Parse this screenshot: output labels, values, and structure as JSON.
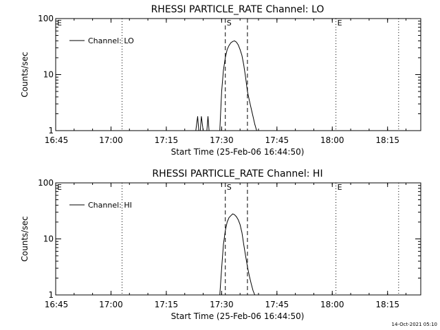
{
  "footer": {
    "timestamp": "14-Oct-2021 05:10"
  },
  "chart_data": [
    {
      "type": "line",
      "title": "RHESSI PARTICLE_RATE Channel: LO",
      "xlabel": "Start Time (25-Feb-06 16:44:50)",
      "ylabel": "Counts/sec",
      "yscale": "log",
      "ylim": [
        1,
        100
      ],
      "xlim": [
        "16:45",
        "18:24"
      ],
      "xticks": [
        "16:45",
        "17:00",
        "17:15",
        "17:30",
        "17:45",
        "18:00",
        "18:15"
      ],
      "yticks": [
        "1",
        "10",
        "100"
      ],
      "legend": {
        "label": "Channel: LO",
        "position": "top-left"
      },
      "markers": [
        {
          "label": "E",
          "style": "dotted",
          "x": "16:45"
        },
        {
          "label": "",
          "style": "dotted",
          "x": "17:03"
        },
        {
          "label": "S",
          "style": "dashed",
          "x": "17:31"
        },
        {
          "label": "",
          "style": "dashed",
          "x": "17:37"
        },
        {
          "label": "E",
          "style": "dotted",
          "x": "18:01"
        },
        {
          "label": "",
          "style": "dotted",
          "x": "18:18"
        }
      ],
      "series": [
        {
          "name": "Channel: LO",
          "x": [
            "17:23",
            "17:23.5",
            "17:23.8",
            "17:24.2",
            "17:24.5",
            "17:25",
            "17:25.5",
            "17:26",
            "17:26.3",
            "17:26.6",
            "17:27",
            "17:29.5",
            "17:30",
            "17:30.5",
            "17:31",
            "17:31.5",
            "17:32",
            "17:32.5",
            "17:33",
            "17:33.5",
            "17:34",
            "17:34.5",
            "17:35",
            "17:35.5",
            "17:36",
            "17:36.5",
            "17:37",
            "17:37.5",
            "17:38",
            "17:38.5",
            "17:39",
            "17:39.5",
            "17:40"
          ],
          "values": [
            1,
            1.8,
            1,
            1,
            1.8,
            1,
            1,
            1,
            1.8,
            1,
            1,
            1,
            5,
            12,
            20,
            28,
            33,
            37,
            39,
            40,
            38,
            34,
            28,
            22,
            15,
            9,
            5,
            3.5,
            2.5,
            1.8,
            1.3,
            1,
            1
          ]
        }
      ]
    },
    {
      "type": "line",
      "title": "RHESSI PARTICLE_RATE Channel: HI",
      "xlabel": "Start Time (25-Feb-06 16:44:50)",
      "ylabel": "Counts/sec",
      "yscale": "log",
      "ylim": [
        1,
        100
      ],
      "xlim": [
        "16:45",
        "18:24"
      ],
      "xticks": [
        "16:45",
        "17:00",
        "17:15",
        "17:30",
        "17:45",
        "18:00",
        "18:15"
      ],
      "yticks": [
        "1",
        "10",
        "100"
      ],
      "legend": {
        "label": "Channel: HI",
        "position": "top-left"
      },
      "markers": [
        {
          "label": "E",
          "style": "dotted",
          "x": "16:45"
        },
        {
          "label": "",
          "style": "dotted",
          "x": "17:03"
        },
        {
          "label": "S",
          "style": "dashed",
          "x": "17:31"
        },
        {
          "label": "",
          "style": "dashed",
          "x": "17:37"
        },
        {
          "label": "E",
          "style": "dotted",
          "x": "18:01"
        },
        {
          "label": "",
          "style": "dotted",
          "x": "18:18"
        }
      ],
      "series": [
        {
          "name": "Channel: HI",
          "x": [
            "17:29.5",
            "17:30",
            "17:30.5",
            "17:31",
            "17:31.5",
            "17:32",
            "17:32.5",
            "17:33",
            "17:33.5",
            "17:34",
            "17:34.5",
            "17:35",
            "17:35.5",
            "17:36",
            "17:36.5",
            "17:37",
            "17:37.5",
            "17:38",
            "17:38.5",
            "17:39",
            "17:39.5"
          ],
          "values": [
            1,
            3,
            8,
            14,
            20,
            24,
            26,
            28,
            27,
            25,
            22,
            18,
            13,
            8,
            5,
            3.2,
            2.2,
            1.6,
            1.2,
            1,
            1
          ]
        }
      ]
    }
  ]
}
